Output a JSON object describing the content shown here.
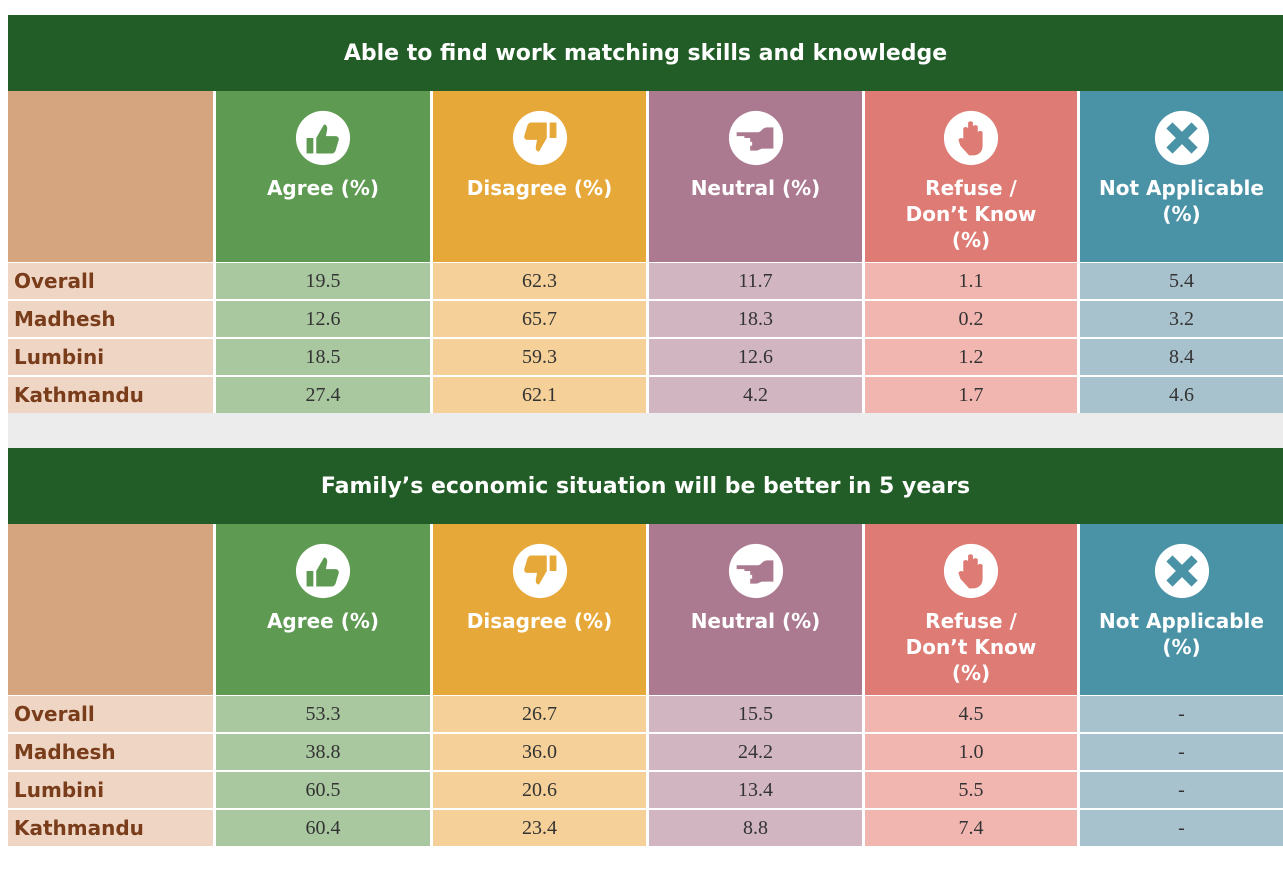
{
  "tables": [
    {
      "title": "Able to find work matching skills and knowledge",
      "columns": [
        "Agree (%)",
        "Disagree (%)",
        "Neutral (%)",
        "Refuse / Don’t Know (%)",
        "Not Applicable (%)"
      ],
      "rows": [
        {
          "label": "Overall",
          "values": [
            "19.5",
            "62.3",
            "11.7",
            "1.1",
            "5.4"
          ]
        },
        {
          "label": "Madhesh",
          "values": [
            "12.6",
            "65.7",
            "18.3",
            "0.2",
            "3.2"
          ]
        },
        {
          "label": "Lumbini",
          "values": [
            "18.5",
            "59.3",
            "12.6",
            "1.2",
            "8.4"
          ]
        },
        {
          "label": "Kathmandu",
          "values": [
            "27.4",
            "62.1",
            "4.2",
            "1.7",
            "4.6"
          ]
        }
      ]
    },
    {
      "title": "Family’s economic situation will be better in 5 years",
      "columns": [
        "Agree (%)",
        "Disagree (%)",
        "Neutral (%)",
        "Refuse / Don’t Know (%)",
        "Not Applicable (%)"
      ],
      "rows": [
        {
          "label": "Overall",
          "values": [
            "53.3",
            "26.7",
            "15.5",
            "4.5",
            "-"
          ]
        },
        {
          "label": "Madhesh",
          "values": [
            "38.8",
            "36.0",
            "24.2",
            "1.0",
            "-"
          ]
        },
        {
          "label": "Lumbini",
          "values": [
            "60.5",
            "20.6",
            "13.4",
            "5.5",
            "-"
          ]
        },
        {
          "label": "Kathmandu",
          "values": [
            "60.4",
            "23.4",
            "8.8",
            "7.4",
            "-"
          ]
        }
      ]
    }
  ]
}
